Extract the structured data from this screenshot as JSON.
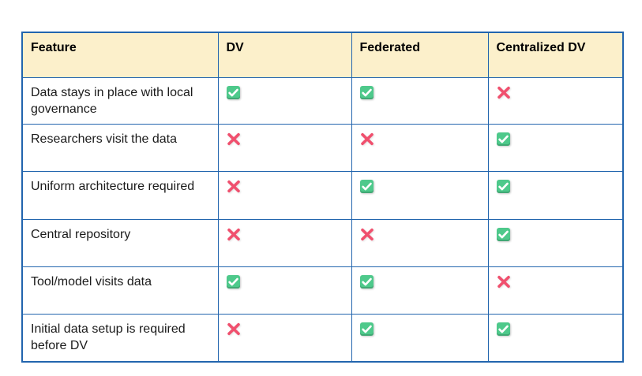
{
  "table": {
    "headers": [
      "Feature",
      "DV",
      "Federated",
      "Centralized DV"
    ],
    "rows": [
      {
        "feature": "Data stays in place with local governance",
        "values": [
          "check",
          "check",
          "cross"
        ]
      },
      {
        "feature": "Researchers visit the data",
        "values": [
          "cross",
          "cross",
          "check"
        ]
      },
      {
        "feature": "Uniform architecture required",
        "values": [
          "cross",
          "check",
          "check"
        ]
      },
      {
        "feature": "Central repository",
        "values": [
          "cross",
          "cross",
          "check"
        ]
      },
      {
        "feature": "Tool/model visits data",
        "values": [
          "check",
          "check",
          "cross"
        ]
      },
      {
        "feature": "Initial data setup is required before DV",
        "values": [
          "cross",
          "check",
          "check"
        ]
      }
    ],
    "colors": {
      "border_blue": "#2265AE",
      "header_background": "#FCF0CB",
      "check_green": "#4EC98B",
      "cross_pink": "#F0506E"
    }
  }
}
